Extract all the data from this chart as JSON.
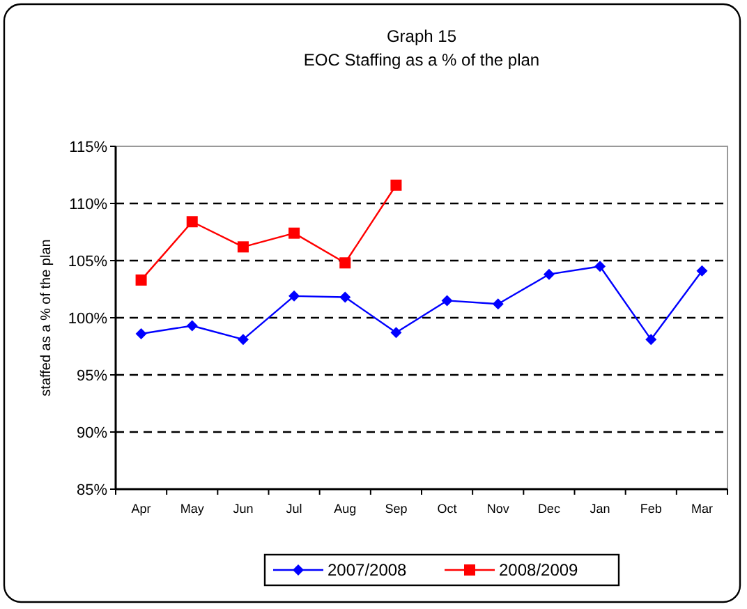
{
  "chart_data": {
    "type": "line",
    "title": "Graph 15",
    "subtitle": "EOC Staffing as a % of the plan",
    "ylabel": "staffed as a % of the plan",
    "categories": [
      "Apr",
      "May",
      "Jun",
      "Jul",
      "Aug",
      "Sep",
      "Oct",
      "Nov",
      "Dec",
      "Jan",
      "Feb",
      "Mar"
    ],
    "series": [
      {
        "name": "2007/2008",
        "color": "#0000ff",
        "marker": "diamond",
        "values": [
          98.6,
          99.3,
          98.1,
          101.9,
          101.8,
          98.7,
          101.5,
          101.2,
          103.8,
          104.5,
          98.1,
          104.1
        ]
      },
      {
        "name": "2008/2009",
        "color": "#ff0000",
        "marker": "square",
        "values": [
          103.3,
          108.4,
          106.2,
          107.4,
          104.8,
          111.6,
          null,
          null,
          null,
          null,
          null,
          null
        ]
      }
    ],
    "ylim": [
      85,
      115
    ],
    "yticks": [
      {
        "value": 85,
        "label": "85%"
      },
      {
        "value": 90,
        "label": "90%"
      },
      {
        "value": 95,
        "label": "95%"
      },
      {
        "value": 100,
        "label": "100%"
      },
      {
        "value": 105,
        "label": "105%"
      },
      {
        "value": 110,
        "label": "110%"
      },
      {
        "value": 115,
        "label": "115%"
      }
    ],
    "grid": "y",
    "legend": "bottom",
    "line_style": "solid"
  }
}
